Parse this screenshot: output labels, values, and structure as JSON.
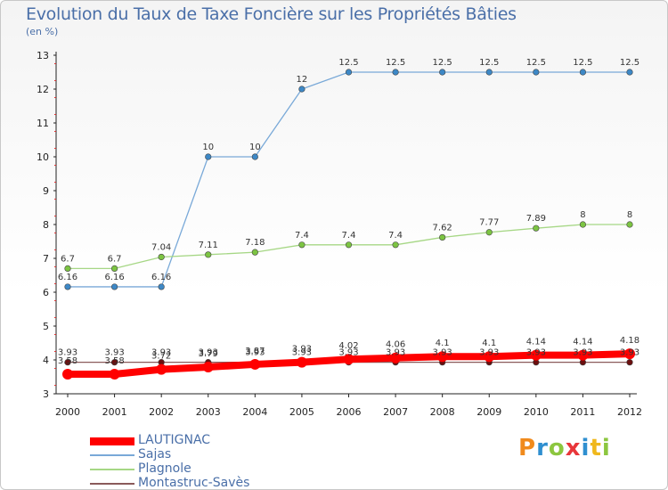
{
  "title": "Evolution du Taux de Taxe Foncière sur les Propriétés Bâties",
  "subtitle": "(en %)",
  "brand": {
    "text": "Proxiti",
    "letters": [
      "P",
      "r",
      "o",
      "x",
      "i",
      "t",
      "i"
    ],
    "colors": [
      "#f08a1c",
      "#2f8fd0",
      "#8cc63f",
      "#e8363a",
      "#2f8fd0",
      "#f0b81c",
      "#8cc63f"
    ]
  },
  "chart_data": {
    "type": "line",
    "x": [
      "2000",
      "2001",
      "2002",
      "2003",
      "2004",
      "2005",
      "2006",
      "2007",
      "2008",
      "2009",
      "2010",
      "2011",
      "2012"
    ],
    "ylim": [
      3,
      13
    ],
    "yticks": [
      3,
      4,
      5,
      6,
      7,
      8,
      9,
      10,
      11,
      12,
      13
    ],
    "grid": false,
    "legend_position": "bottom-left",
    "series": [
      {
        "name": "LAUTIGNAC",
        "color": "#ff0000",
        "marker": "#ff0000",
        "width": 8,
        "values": [
          3.58,
          3.58,
          3.72,
          3.79,
          3.87,
          3.93,
          4.02,
          4.06,
          4.1,
          4.1,
          4.14,
          4.14,
          4.18
        ]
      },
      {
        "name": "Sajas",
        "color": "#79a9d8",
        "marker": "#3d88c6",
        "width": 1.3,
        "values": [
          6.16,
          6.16,
          6.16,
          10,
          10,
          12,
          12.5,
          12.5,
          12.5,
          12.5,
          12.5,
          12.5,
          12.5
        ],
        "labels": [
          "6.16",
          "6.16",
          "6.16",
          "10",
          "10",
          "12",
          "12.5",
          "12.5",
          "12.5",
          "12.5",
          "12.5",
          "12.5",
          "12.5"
        ]
      },
      {
        "name": "Plagnole",
        "color": "#a6d785",
        "marker": "#7cc442",
        "width": 1.3,
        "values": [
          6.7,
          6.7,
          7.04,
          7.11,
          7.18,
          7.4,
          7.4,
          7.4,
          7.62,
          7.77,
          7.89,
          8,
          8
        ],
        "labels": [
          "6.7",
          "6.7",
          "7.04",
          "7.11",
          "7.18",
          "7.4",
          "7.4",
          "7.4",
          "7.62",
          "7.77",
          "7.89",
          "8",
          "8"
        ]
      },
      {
        "name": "Montastruc-Savès",
        "color": "#8a5a5a",
        "marker": "#6b0f0f",
        "width": 1.3,
        "values": [
          3.93,
          3.93,
          3.93,
          3.93,
          3.93,
          3.93,
          3.93,
          3.93,
          3.93,
          3.93,
          3.93,
          3.93,
          3.93
        ],
        "labels": [
          "3.93",
          "3.93",
          "3.93",
          "3.93",
          "3.93",
          "3.93",
          "3.93",
          "3.93",
          "3.93",
          "3.93",
          "3.93",
          "3.93",
          "3.93"
        ]
      }
    ],
    "extra_labels": [
      {
        "series": "LAUTIGNAC",
        "labels": [
          "3.58",
          "3.58",
          "3.72",
          "3.79",
          "3.87",
          "3.93",
          "4.02",
          "4.06",
          "4.1",
          "4.1",
          "4.14",
          "4.14",
          "4.18"
        ]
      }
    ]
  }
}
